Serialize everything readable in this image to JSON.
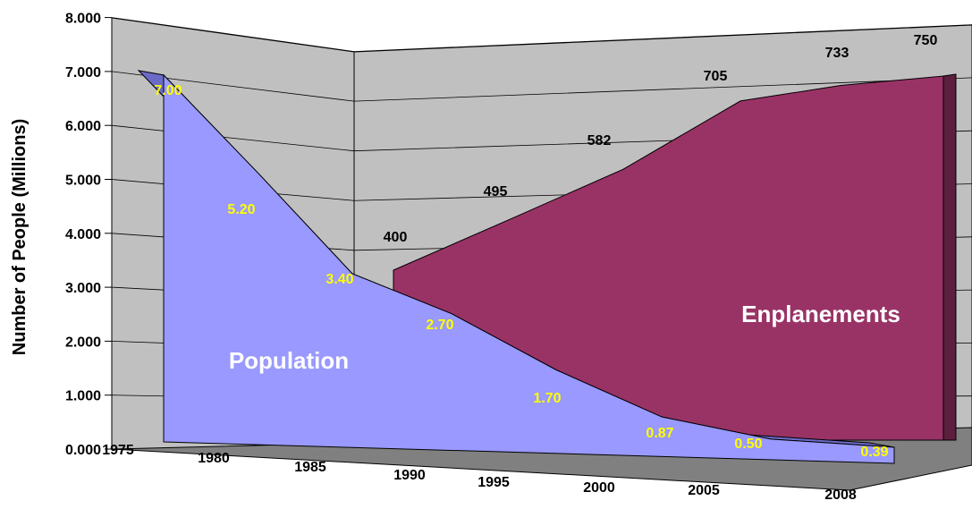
{
  "chart_data": {
    "type": "area",
    "three_d": true,
    "ylabel": "Number of People (Millions)",
    "y_ticks": [
      "0.000",
      "1.000",
      "2.000",
      "3.000",
      "4.000",
      "5.000",
      "6.000",
      "7.000",
      "8.000"
    ],
    "ylim": [
      0,
      8
    ],
    "x_ticks": [
      "1975",
      "1980",
      "1985",
      "1990",
      "1995",
      "2000",
      "2005",
      "2008"
    ],
    "grid": true,
    "series": [
      {
        "name": "Population",
        "color": "#9999ff",
        "points": [
          {
            "x": 1975,
            "y": 7.0,
            "label": "7.00"
          },
          {
            "x": 1980,
            "y": 5.2,
            "label": "5.20"
          },
          {
            "x": 1985,
            "y": 3.4,
            "label": "3.40"
          },
          {
            "x": 1990,
            "y": 2.7,
            "label": "2.70"
          },
          {
            "x": 1995,
            "y": 1.7,
            "label": "1.70"
          },
          {
            "x": 2000,
            "y": 0.87,
            "label": "0.87"
          },
          {
            "x": 2005,
            "y": 0.5,
            "label": "0.50"
          },
          {
            "x": 2008,
            "y": 0.39,
            "label": "0.39"
          }
        ]
      },
      {
        "name": "Enplanements",
        "color": "#993366",
        "points": [
          {
            "x": 1985,
            "y": 400,
            "label": "400"
          },
          {
            "x": 1990,
            "y": 495,
            "label": "495"
          },
          {
            "x": 1995,
            "y": 582,
            "label": "582"
          },
          {
            "x": 2000,
            "y": 705,
            "label": "705"
          },
          {
            "x": 2005,
            "y": 733,
            "label": "733"
          },
          {
            "x": 2008,
            "y": 750,
            "label": "750"
          }
        ]
      }
    ]
  }
}
